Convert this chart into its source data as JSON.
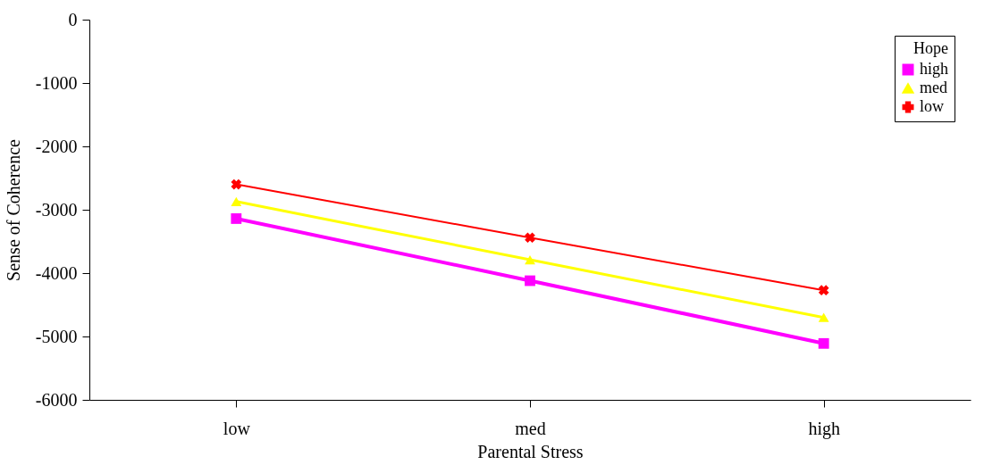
{
  "chart_data": {
    "type": "line",
    "xlabel": "Parental Stress",
    "ylabel": "Sense of Coherence",
    "legend_title": "Hope",
    "categories": [
      "low",
      "med",
      "high"
    ],
    "series": [
      {
        "name": "high",
        "color": "#ff00ff",
        "marker": "square",
        "values": [
          -3140,
          -4120,
          -5110
        ]
      },
      {
        "name": "med",
        "color": "#ffff00",
        "marker": "triangle",
        "values": [
          -2870,
          -3790,
          -4700
        ]
      },
      {
        "name": "low",
        "color": "#ff0000",
        "marker": "cross",
        "values": [
          -2600,
          -3440,
          -4270
        ]
      }
    ],
    "ylim": [
      -6000,
      0
    ],
    "yticks": [
      -6000,
      -5000,
      -4000,
      -3000,
      -2000,
      -1000,
      0
    ],
    "grid": false,
    "legend": "top right"
  }
}
